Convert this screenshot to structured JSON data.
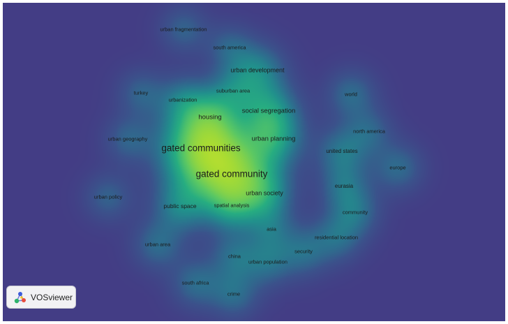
{
  "app": {
    "name": "VOSviewer"
  },
  "colors": {
    "background": "#433d85",
    "density_low": "#2f7f8e",
    "density_mid": "#27b479",
    "density_high": "#fde725"
  },
  "map": {
    "visualization": "density",
    "terms": [
      {
        "id": "urban-fragmentation",
        "label": "urban fragmentation",
        "density": 0.25,
        "size": 7.5
      },
      {
        "id": "south-america",
        "label": "south america",
        "density": 0.25,
        "size": 7.5
      },
      {
        "id": "urban-development",
        "label": "urban development",
        "density": 0.42,
        "size": 9
      },
      {
        "id": "turkey",
        "label": "turkey",
        "density": 0.25,
        "size": 7.5
      },
      {
        "id": "suburban-area",
        "label": "suburban area",
        "density": 0.3,
        "size": 7.5
      },
      {
        "id": "urbanization",
        "label": "urbanization",
        "density": 0.3,
        "size": 7.5
      },
      {
        "id": "world",
        "label": "world",
        "density": 0.3,
        "size": 7.5
      },
      {
        "id": "social-segregation",
        "label": "social segregation",
        "density": 0.5,
        "size": 9.5
      },
      {
        "id": "housing",
        "label": "housing",
        "density": 0.42,
        "size": 9.5
      },
      {
        "id": "north-america",
        "label": "north america",
        "density": 0.25,
        "size": 7.5
      },
      {
        "id": "urban-geography",
        "label": "urban geography",
        "density": 0.25,
        "size": 7.5
      },
      {
        "id": "urban-planning",
        "label": "urban planning",
        "density": 0.48,
        "size": 9.5
      },
      {
        "id": "gated-communities",
        "label": "gated communities",
        "density": 1.0,
        "size": 13.5
      },
      {
        "id": "united-states",
        "label": "united states",
        "density": 0.35,
        "size": 8
      },
      {
        "id": "europe",
        "label": "europe",
        "density": 0.3,
        "size": 7.5
      },
      {
        "id": "gated-community",
        "label": "gated community",
        "density": 0.95,
        "size": 13.5
      },
      {
        "id": "eurasia",
        "label": "eurasia",
        "density": 0.3,
        "size": 8
      },
      {
        "id": "urban-society",
        "label": "urban society",
        "density": 0.42,
        "size": 9
      },
      {
        "id": "urban-policy",
        "label": "urban policy",
        "density": 0.25,
        "size": 7.5
      },
      {
        "id": "public-space",
        "label": "public space",
        "density": 0.38,
        "size": 8.5
      },
      {
        "id": "spatial-analysis",
        "label": "spatial analysis",
        "density": 0.32,
        "size": 7.5
      },
      {
        "id": "community",
        "label": "community",
        "density": 0.3,
        "size": 7.5
      },
      {
        "id": "asia",
        "label": "asia",
        "density": 0.25,
        "size": 7.5
      },
      {
        "id": "residential-location",
        "label": "residential location",
        "density": 0.3,
        "size": 7.5
      },
      {
        "id": "urban-area",
        "label": "urban area",
        "density": 0.3,
        "size": 7.5
      },
      {
        "id": "security",
        "label": "security",
        "density": 0.3,
        "size": 7.5
      },
      {
        "id": "china",
        "label": "china",
        "density": 0.3,
        "size": 7.5
      },
      {
        "id": "urban-population",
        "label": "urban population",
        "density": 0.3,
        "size": 7.5
      },
      {
        "id": "south-africa",
        "label": "south africa",
        "density": 0.3,
        "size": 7.5
      },
      {
        "id": "crime",
        "label": "crime",
        "density": 0.3,
        "size": 7.5
      }
    ]
  }
}
